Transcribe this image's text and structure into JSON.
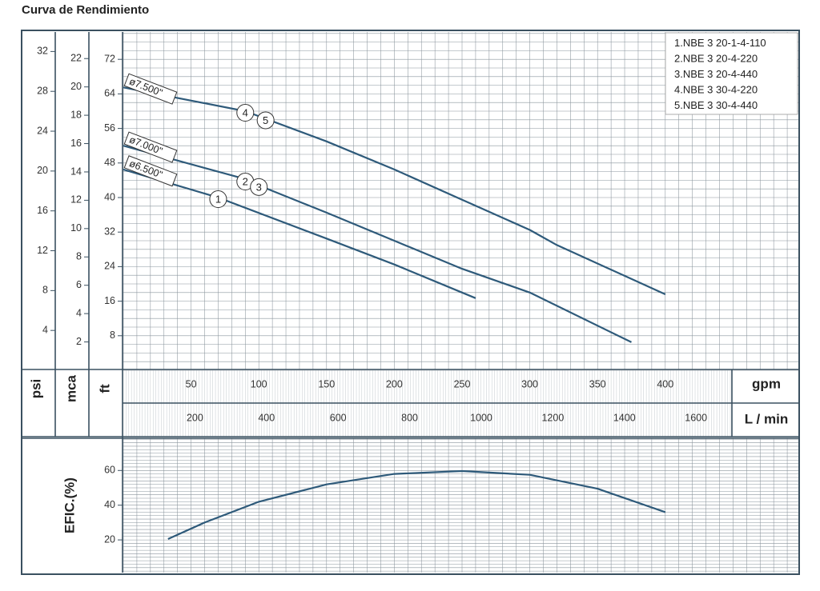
{
  "title": "Curva de Rendimiento",
  "colors": {
    "curve": "#2e5a7a",
    "frame": "#3a5060",
    "grid": "#8a949c",
    "text": "#333333"
  },
  "chart_data": [
    {
      "type": "line",
      "title": "Curva de Rendimiento",
      "x_unit": "gpm",
      "x_unit_secondary": "L / min",
      "xlim": [
        0,
        500
      ],
      "x_ticks": [
        50,
        100,
        150,
        200,
        250,
        300,
        350,
        400
      ],
      "x_ticks_secondary": [
        200,
        400,
        600,
        800,
        1000,
        1200,
        1400,
        1600
      ],
      "y_unit_primary": "ft",
      "y_units": [
        "psi",
        "mca",
        "ft"
      ],
      "ylim_ft": [
        0,
        80
      ],
      "y_ticks_ft": [
        8,
        16,
        24,
        32,
        40,
        48,
        56,
        64,
        72
      ],
      "y_ticks_mca": [
        2,
        4,
        6,
        8,
        10,
        12,
        14,
        16,
        18,
        20,
        22
      ],
      "y_ticks_psi": [
        4,
        8,
        12,
        16,
        20,
        24,
        28,
        32
      ],
      "grid": true,
      "legend_position": "top-right",
      "legend": [
        "NBE 3 20-1-4-110",
        "NBE 3 20-4-220",
        "NBE 3 20-4-440",
        "NBE 3 30-4-220",
        "NBE 3 30-4-440"
      ],
      "legend_numbers": [
        "1.",
        "2.",
        "3.",
        "4.",
        "5."
      ],
      "series": [
        {
          "label": "ø6.500\"",
          "curve_numbers": [
            "1"
          ],
          "x": [
            0,
            70,
            150,
            200,
            260
          ],
          "y": [
            46.5,
            40,
            30.5,
            24.5,
            16.7
          ]
        },
        {
          "label": "ø7.000\"",
          "curve_numbers": [
            "2",
            "3"
          ],
          "x": [
            0,
            85,
            150,
            200,
            250,
            300,
            375
          ],
          "y": [
            52,
            44.7,
            36.5,
            30,
            23.5,
            18,
            6.5
          ]
        },
        {
          "label": "ø7.500\"",
          "curve_numbers": [
            "4",
            "5"
          ],
          "x": [
            0,
            90,
            150,
            200,
            250,
            300,
            320,
            400
          ],
          "y": [
            65.5,
            60,
            53,
            46.5,
            39.5,
            32.5,
            29,
            17.6
          ]
        }
      ],
      "curve_number_positions": {
        "1": 70,
        "2": 90,
        "3": 100,
        "4": 90,
        "5": 105
      }
    },
    {
      "type": "line",
      "ylabel": "EFIC.(%)",
      "y_ticks": [
        20,
        40,
        60
      ],
      "ylim": [
        12,
        72
      ],
      "xlim": [
        0,
        500
      ],
      "grid": true,
      "series": [
        {
          "x": [
            33,
            60,
            100,
            150,
            200,
            250,
            300,
            350,
            400
          ],
          "y": [
            20.5,
            30,
            42,
            52,
            58,
            59.7,
            57.5,
            49.5,
            36
          ]
        }
      ]
    }
  ]
}
